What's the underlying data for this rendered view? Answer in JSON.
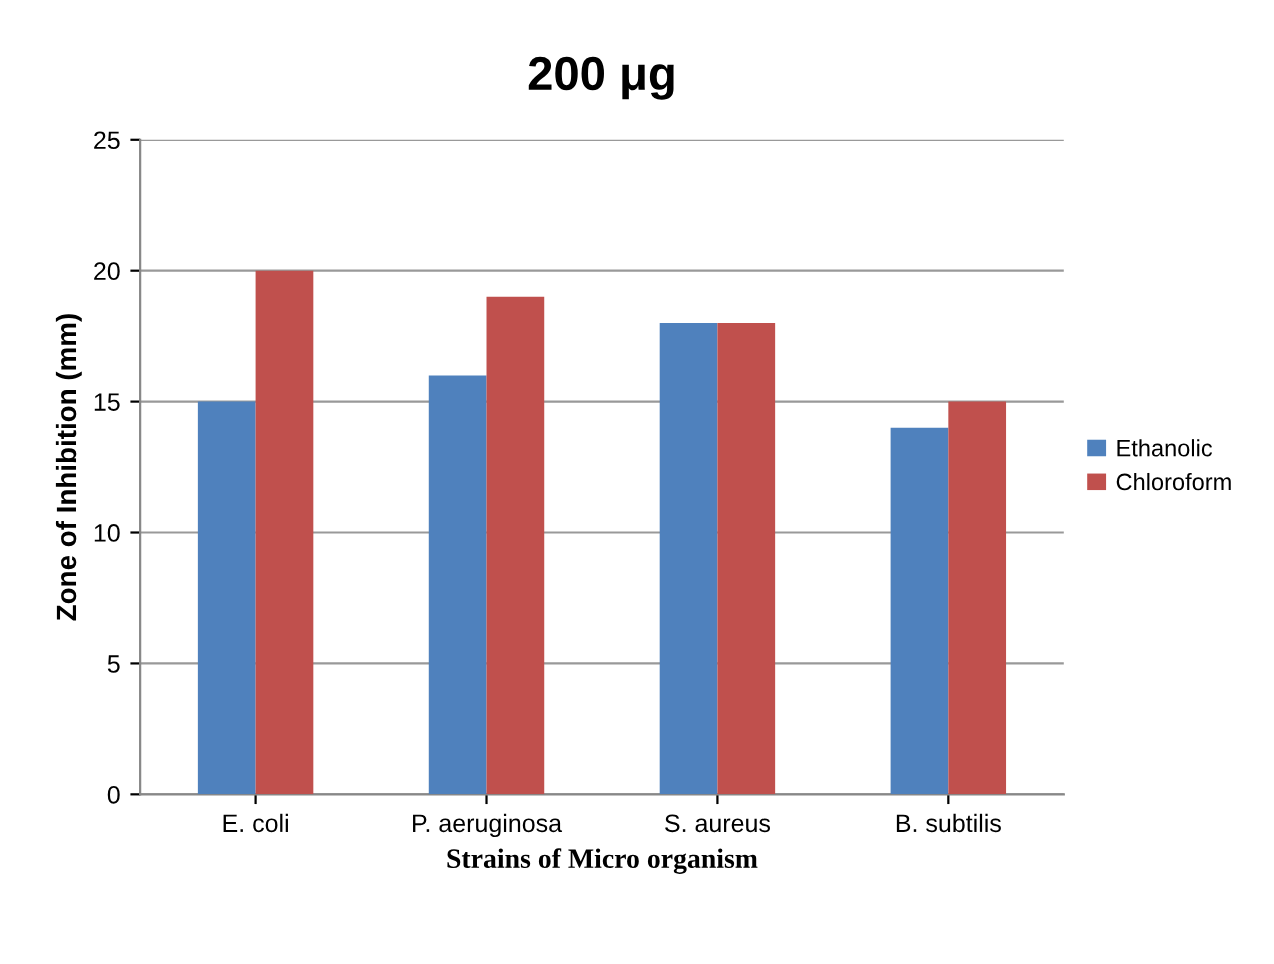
{
  "chart_data": {
    "type": "bar",
    "title": "200 μg",
    "xlabel": "Strains of Micro organism",
    "ylabel": "Zone of Inhibition (mm)",
    "categories": [
      "E. coli",
      "P. aeruginosa",
      "S. aureus",
      "B. subtilis"
    ],
    "series": [
      {
        "name": "Ethanolic",
        "color": "#4f81bd",
        "values": [
          15,
          16,
          18,
          14
        ]
      },
      {
        "name": "Chloroform",
        "color": "#c0504d",
        "values": [
          20,
          19,
          18,
          15
        ]
      }
    ],
    "ylim": [
      0,
      25
    ],
    "yticks": [
      0,
      5,
      10,
      15,
      20,
      25
    ],
    "grid": "y",
    "legend": "right"
  }
}
